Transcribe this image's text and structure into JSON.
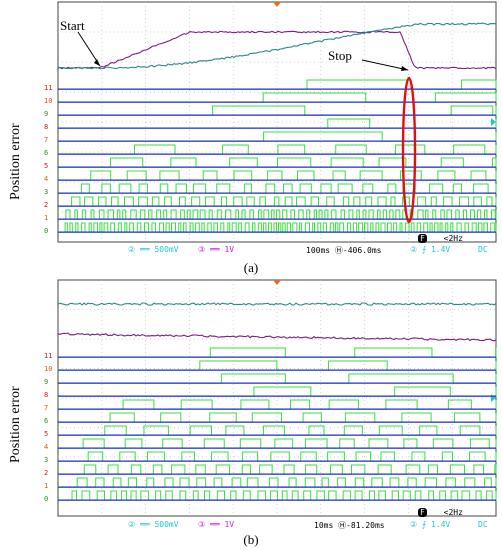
{
  "panels": [
    {
      "caption": "(a)",
      "ylabel": "Position error",
      "annotations": {
        "start": "Start",
        "stop": "Stop"
      },
      "status": {
        "ch2_scale": "500mV",
        "ch3_scale": "1V",
        "timebase": "100ms",
        "delay": "-406.0ms",
        "trigger_level": "1.4V",
        "coupling": "DC",
        "filter": "<2Hz",
        "filter_key": "F"
      },
      "digital_labels": [
        "11",
        "10",
        "9",
        "8",
        "7",
        "6",
        "5",
        "4",
        "3",
        "2",
        "1",
        "0"
      ]
    },
    {
      "caption": "(b)",
      "ylabel": "Position error",
      "status": {
        "ch2_scale": "500mV",
        "ch3_scale": "1V",
        "timebase": "10ms",
        "delay": "-81.20ms",
        "trigger_level": "1.4V",
        "coupling": "DC",
        "filter": "<2Hz",
        "filter_key": "F"
      },
      "digital_labels": [
        "11",
        "10",
        "9",
        "8",
        "7",
        "6",
        "5",
        "4",
        "3",
        "2",
        "1",
        "0"
      ]
    }
  ],
  "colors": {
    "grid": "#c0c0c0",
    "analog_teal": "#2a8a86",
    "analog_purple": "#7b1f82",
    "digital_high": "#3adf3a",
    "digital_low": "#1c2fd0",
    "highlight": "#e01010",
    "cyan": "#21c7d6",
    "magenta": "#d11fd1"
  }
}
